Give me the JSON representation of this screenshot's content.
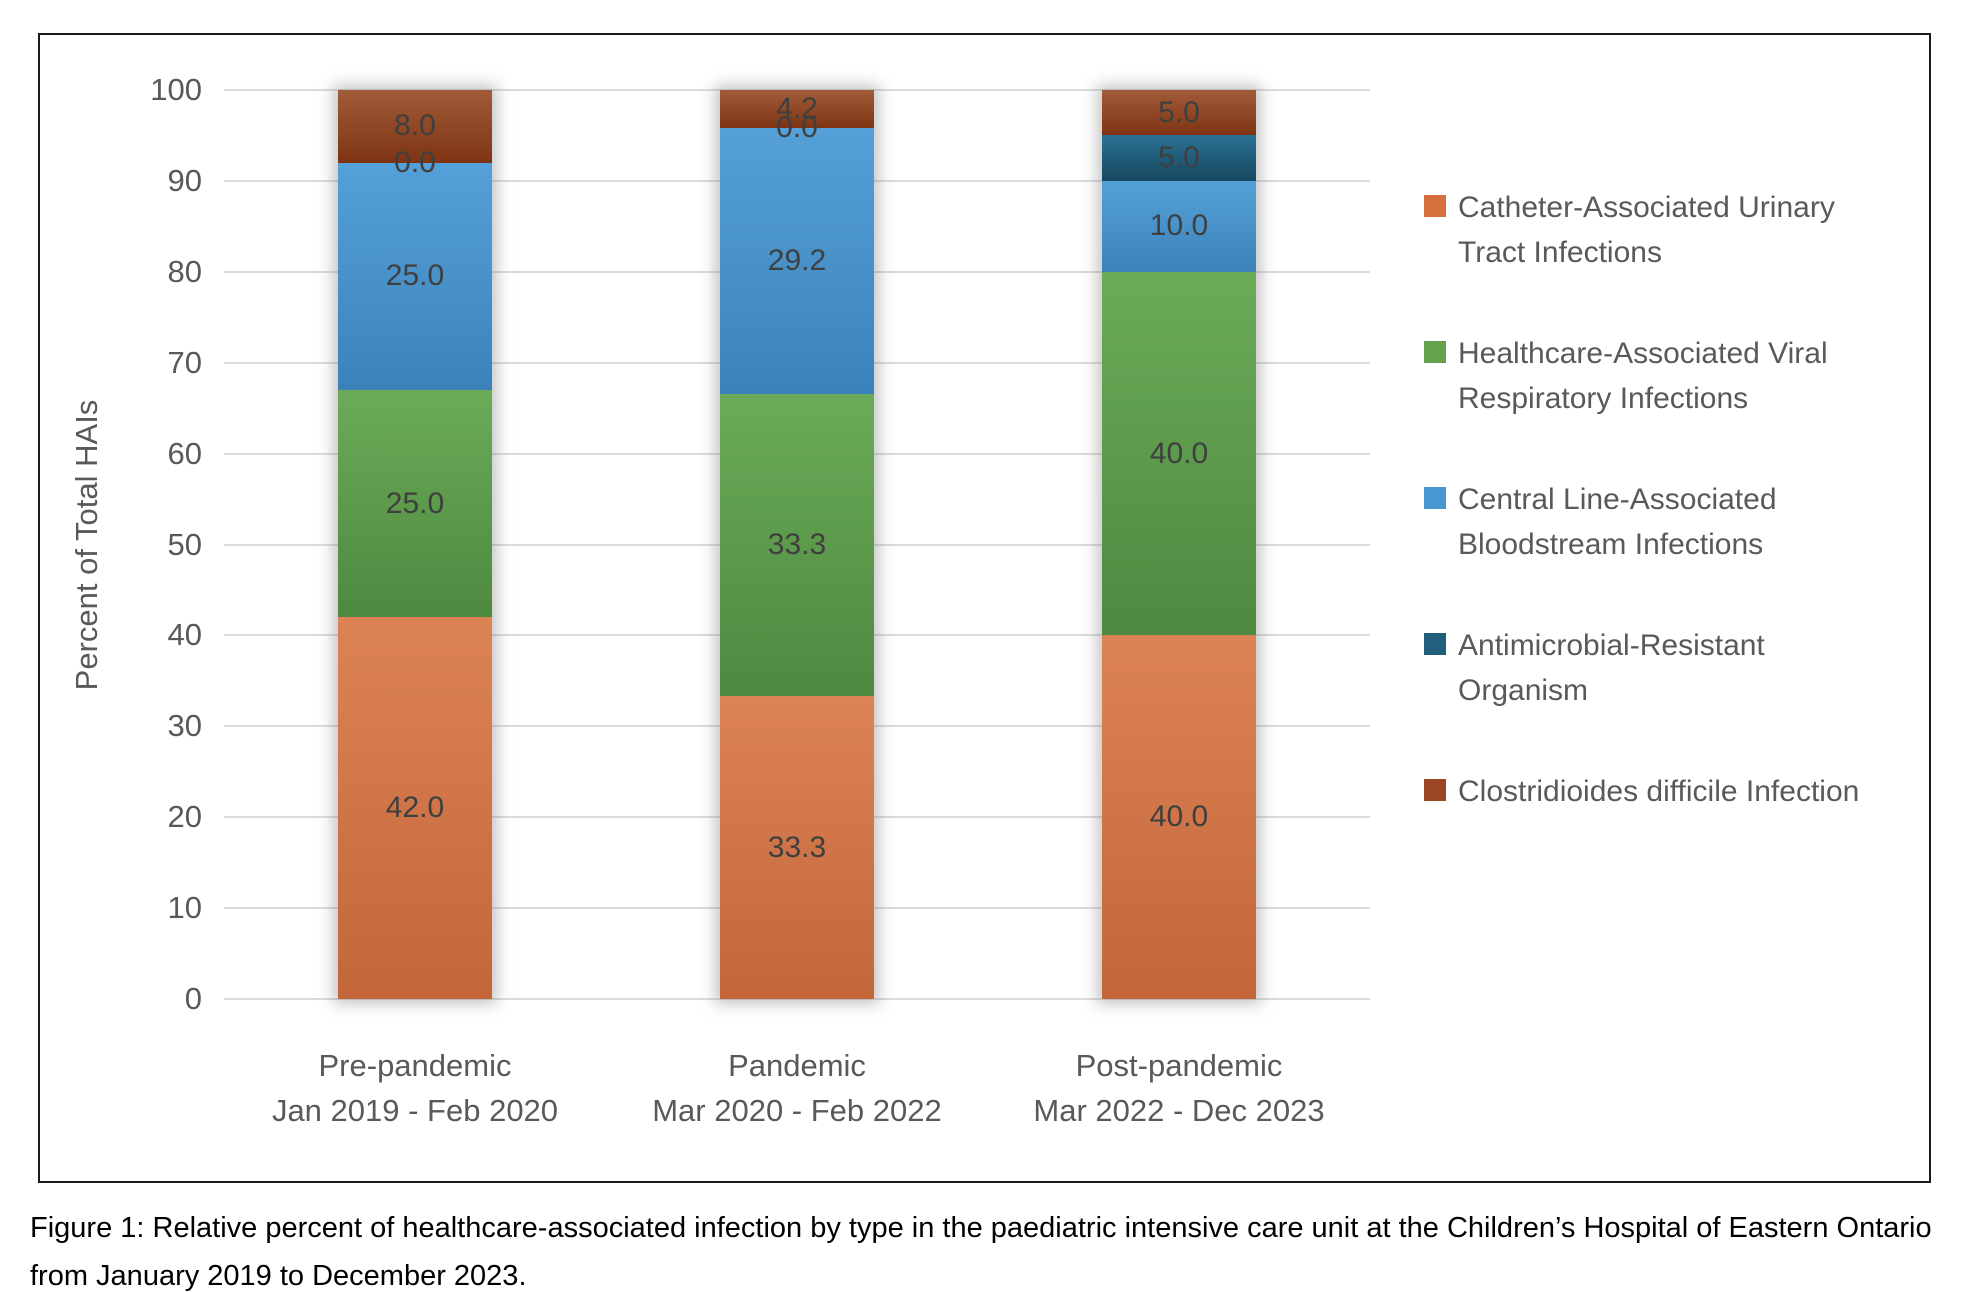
{
  "figure": {
    "caption": "Figure 1: Relative percent of healthcare-associated infection by type in the paediatric intensive care unit at the Children’s Hospital of Eastern Ontario from January 2019 to December 2023."
  },
  "chart_data": {
    "type": "bar",
    "stacked": true,
    "title": "",
    "ylabel": "Percent of Total HAIs",
    "ylim": [
      0,
      100
    ],
    "yticks": [
      0,
      10,
      20,
      30,
      40,
      50,
      60,
      70,
      80,
      90,
      100
    ],
    "grid": true,
    "legend_position": "right",
    "value_label_format": "0.0",
    "categories": [
      "Pre-pandemic",
      "Pandemic",
      "Post-pandemic"
    ],
    "category_sublabels": [
      "Jan 2019 - Feb 2020",
      "Mar 2020 - Feb 2022",
      "Mar 2022 - Dec 2023"
    ],
    "series": [
      {
        "name": "Catheter-Associated Urinary Tract Infections",
        "legend_lines": [
          "Catheter-Associated Urinary",
          "Tract Infections"
        ],
        "color": "#D5703E",
        "gradient": [
          "#DC8356",
          "#C3663A"
        ],
        "values": [
          42.0,
          33.3,
          40.0
        ]
      },
      {
        "name": "Healthcare-Associated Viral Respiratory Infections",
        "legend_lines": [
          "Healthcare-Associated Viral",
          "Respiratory Infections"
        ],
        "color": "#66A24D",
        "gradient": [
          "#6BAB58",
          "#4E8940"
        ],
        "values": [
          25.0,
          33.3,
          40.0
        ]
      },
      {
        "name": "Central Line-Associated Bloodstream Infections",
        "legend_lines": [
          "Central Line-Associated",
          "Bloodstream Infections"
        ],
        "color": "#4897D1",
        "gradient": [
          "#55A0D8",
          "#3B82BA"
        ],
        "values": [
          25.0,
          29.2,
          10.0
        ]
      },
      {
        "name": "Antimicrobial-Resistant Organism",
        "legend_lines": [
          "Antimicrobial-Resistant",
          "Organism"
        ],
        "color": "#225F7D",
        "gradient": [
          "#2C7296",
          "#16475F"
        ],
        "values": [
          0.0,
          0.0,
          5.0
        ]
      },
      {
        "name": "Clostridioides difficile Infection",
        "legend_lines": [
          "Clostridioides difficile Infection"
        ],
        "color": "#9B4524",
        "gradient": [
          "#A15C3A",
          "#7E3412"
        ],
        "values": [
          8.0,
          4.2,
          5.0
        ]
      }
    ]
  }
}
